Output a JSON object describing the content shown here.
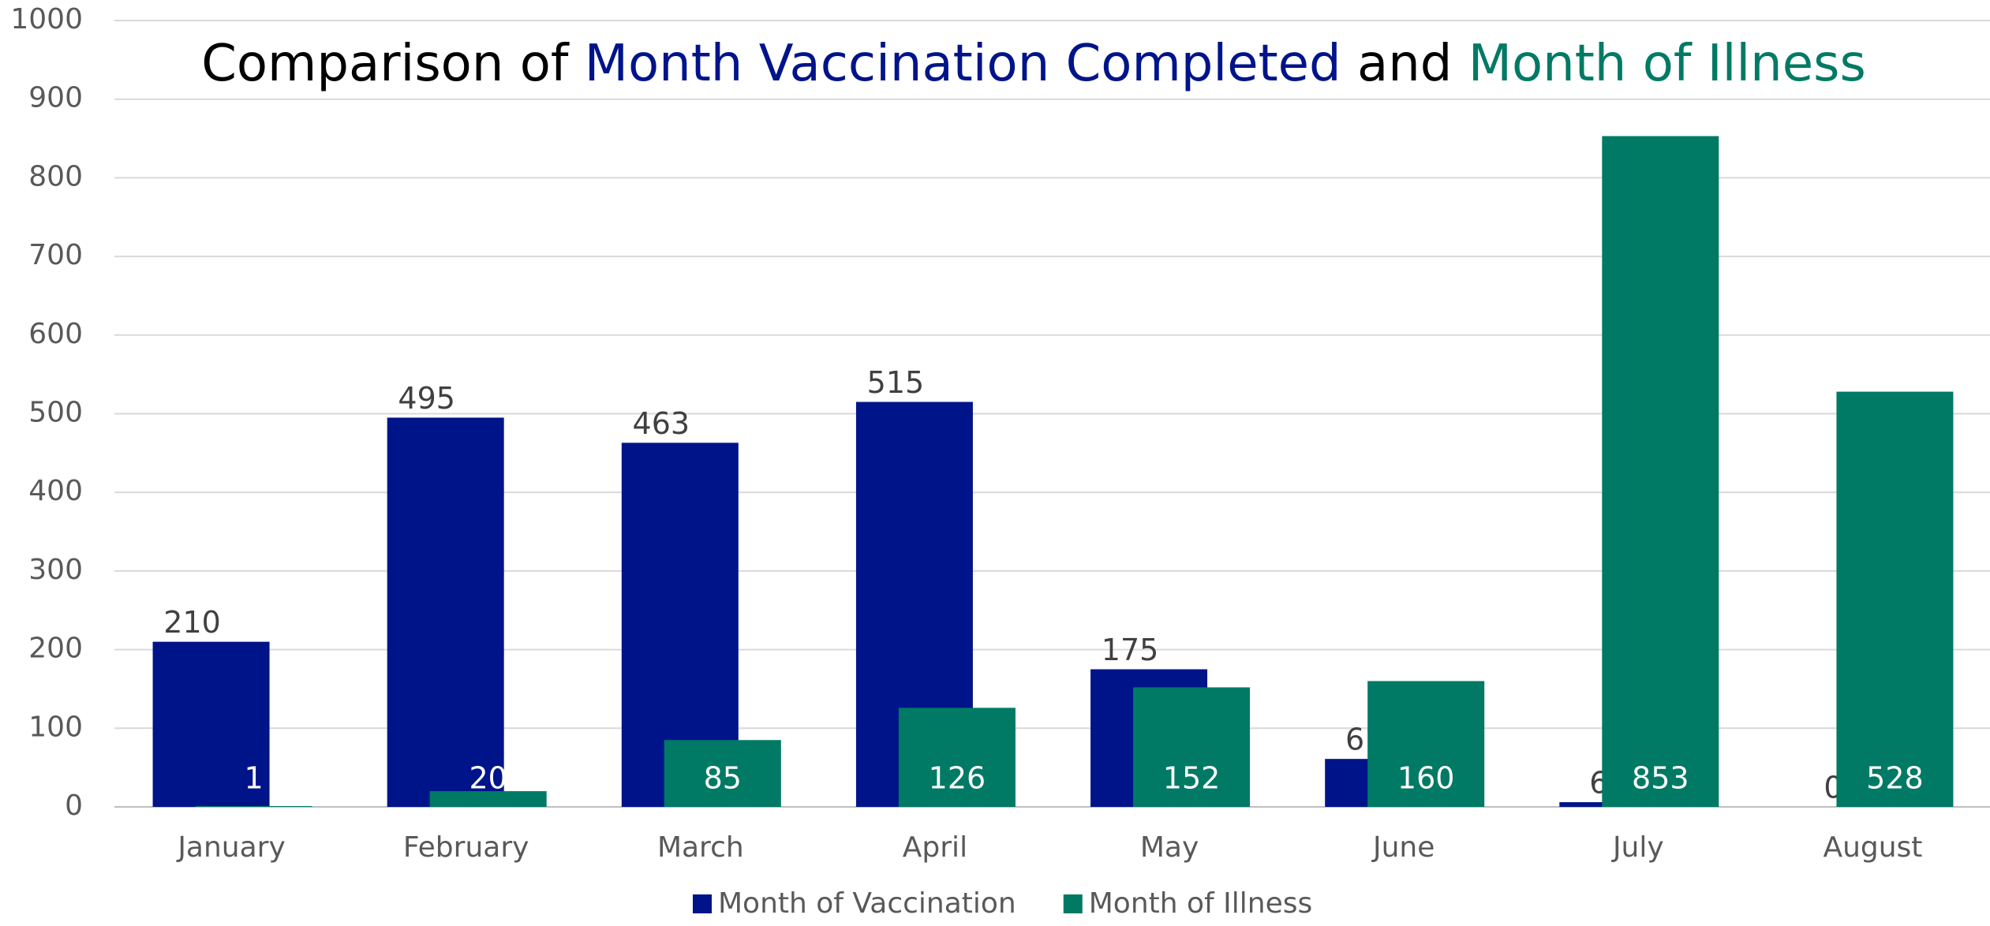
{
  "chart_data": {
    "type": "bar",
    "title": [
      {
        "text": "Comparison of ",
        "color": "#000000"
      },
      {
        "text": "Month Vaccination Completed",
        "color": "#00148a"
      },
      {
        "text": " and ",
        "color": "#000000"
      },
      {
        "text": "Month of Illness",
        "color": "#007a64"
      }
    ],
    "categories": [
      "January",
      "February",
      "March",
      "April",
      "May",
      "June",
      "July",
      "August"
    ],
    "series": [
      {
        "name": "Month of Vaccination",
        "color": "#00148a",
        "values": [
          210,
          495,
          463,
          515,
          175,
          61,
          6,
          0
        ]
      },
      {
        "name": "Month of Illness",
        "color": "#007a64",
        "values": [
          1,
          20,
          85,
          126,
          152,
          160,
          853,
          528
        ]
      }
    ],
    "ylim": [
      0,
      1000
    ],
    "yticks": [
      0,
      100,
      200,
      300,
      400,
      500,
      600,
      700,
      800,
      900,
      1000
    ],
    "grid": true,
    "legend": "bottom"
  }
}
